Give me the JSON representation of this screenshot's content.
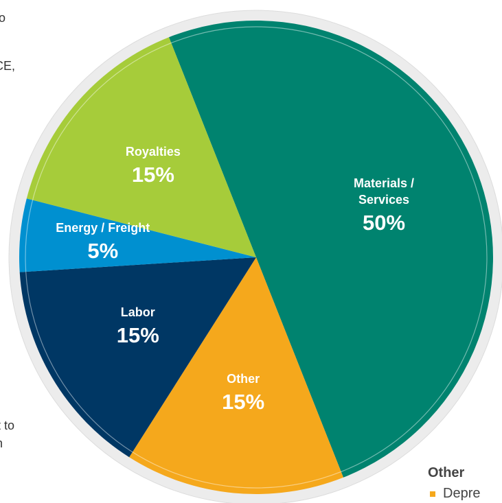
{
  "chart_data": {
    "type": "pie",
    "categories": [
      "Materials / Services",
      "Other",
      "Labor",
      "Energy / Freight",
      "Royalties"
    ],
    "values": [
      50,
      15,
      15,
      5,
      15
    ],
    "value_labels": [
      "50%",
      "15%",
      "15%",
      "5%",
      "15%"
    ],
    "colors": [
      "#00836f",
      "#f5a81c",
      "#003764",
      "#0090d0",
      "#a6cc3a"
    ]
  },
  "left_fragments": [
    "o",
    "CE,",
    "t to",
    "n"
  ],
  "side_note": {
    "title": "Other",
    "items": [
      "Depre"
    ]
  }
}
